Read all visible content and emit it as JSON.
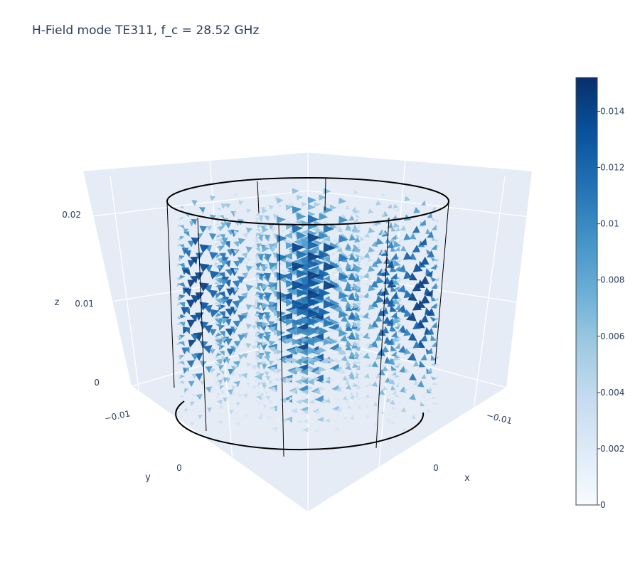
{
  "chart_data": {
    "type": "cone",
    "title": "H-Field mode TE311, f_c = 28.52 GHz",
    "scene": {
      "background": "#e5ecf6",
      "grid_color": "#ffffff",
      "axes": {
        "x": {
          "title": "x",
          "ticks": [
            "−0.01",
            "0"
          ],
          "range": [
            -0.015,
            0.015
          ]
        },
        "y": {
          "title": "y",
          "ticks": [
            "−0.01",
            "0"
          ],
          "range": [
            -0.015,
            0.015
          ]
        },
        "z": {
          "title": "z",
          "ticks": [
            "0",
            "0.01",
            "0.02"
          ],
          "range": [
            0,
            0.024
          ]
        }
      },
      "cylinder": {
        "radius": 0.012,
        "height": 0.0225,
        "color": "#000000"
      }
    },
    "colorbar": {
      "colorscale": "Blues",
      "colors": [
        "#f7fbff",
        "#deebf7",
        "#c6dbef",
        "#9ecae1",
        "#6baed6",
        "#4292c6",
        "#2171b5",
        "#08519c",
        "#08306b"
      ],
      "cmin": 0,
      "cmax": 0.0152,
      "ticks": [
        "0",
        "0.002",
        "0.004",
        "0.006",
        "0.008",
        "0.01",
        "0.012",
        "0.014"
      ],
      "tick_values": [
        0,
        0.002,
        0.004,
        0.006,
        0.008,
        0.01,
        0.012,
        0.014
      ]
    }
  }
}
